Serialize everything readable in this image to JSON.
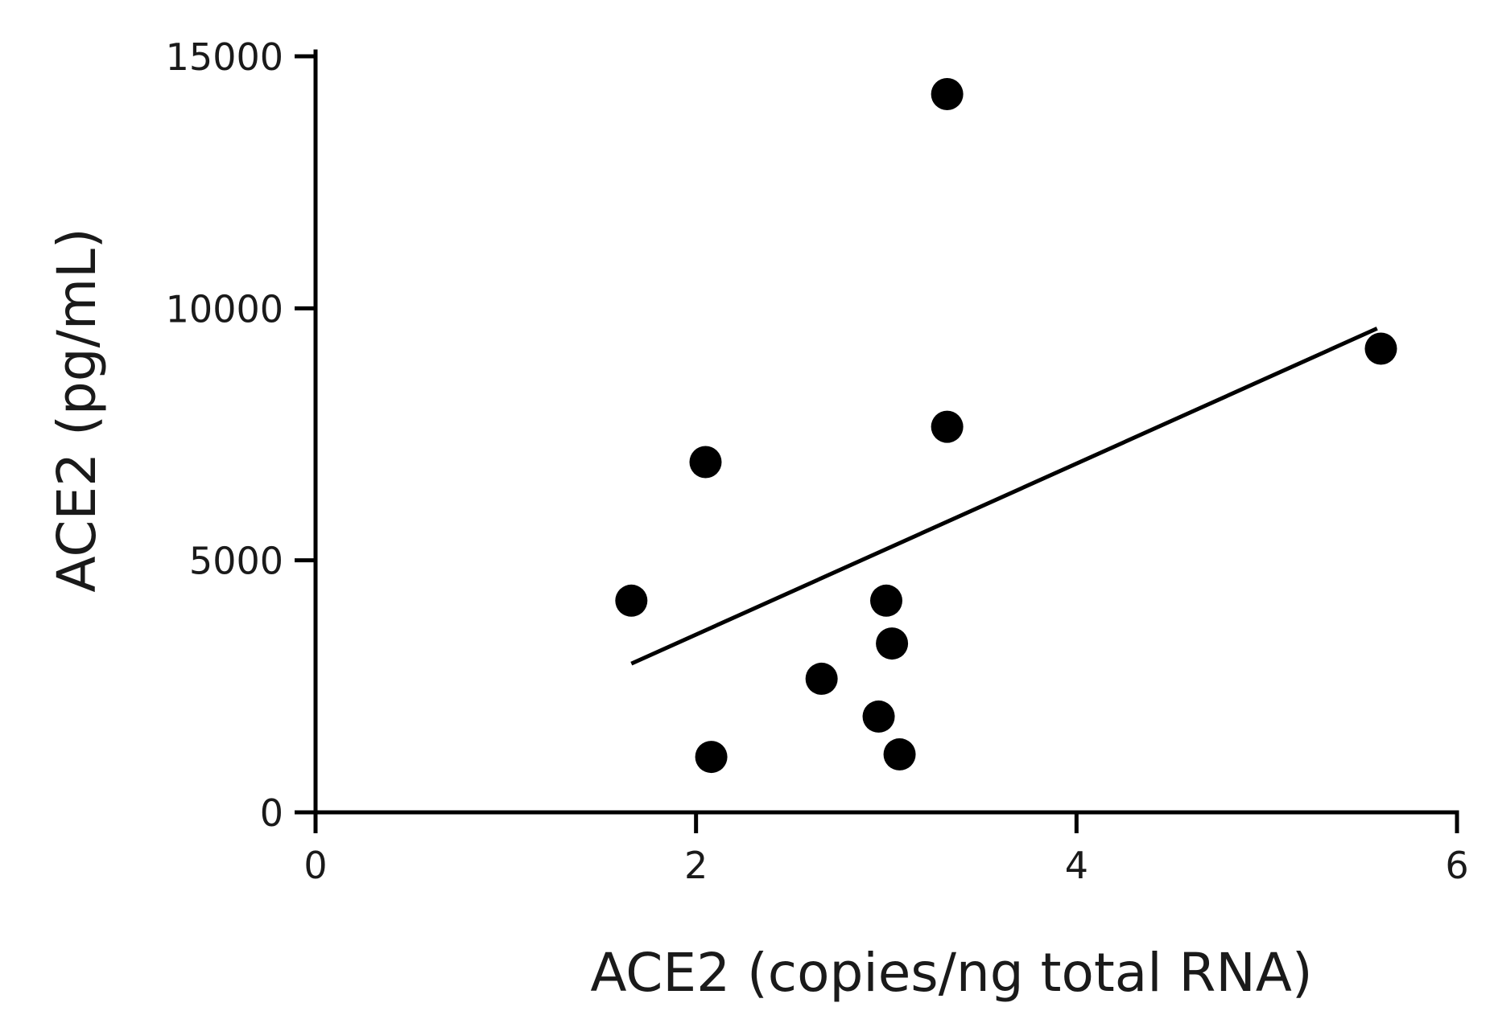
{
  "chart_data": {
    "type": "scatter",
    "title": "",
    "xlabel": "ACE2 (copies/ng total RNA)",
    "ylabel": "ACE2 (pg/mL)",
    "xlim": [
      0,
      6
    ],
    "ylim": [
      0,
      15000
    ],
    "x_ticks": [
      0,
      2,
      4,
      6
    ],
    "y_ticks": [
      0,
      5000,
      10000,
      15000
    ],
    "x_tick_labels": [
      "0",
      "2",
      "4",
      "6"
    ],
    "y_tick_labels": [
      "0",
      "5000",
      "10000",
      "15000"
    ],
    "grid": false,
    "legend": "none",
    "point_color": "#000000",
    "points": [
      {
        "x": 1.66,
        "y": 4200
      },
      {
        "x": 2.05,
        "y": 6950
      },
      {
        "x": 2.08,
        "y": 1100
      },
      {
        "x": 2.66,
        "y": 2650
      },
      {
        "x": 2.96,
        "y": 1900
      },
      {
        "x": 3.0,
        "y": 4200
      },
      {
        "x": 3.03,
        "y": 3350
      },
      {
        "x": 3.07,
        "y": 1150
      },
      {
        "x": 3.32,
        "y": 14250
      },
      {
        "x": 3.32,
        "y": 7650
      },
      {
        "x": 5.6,
        "y": 9200
      }
    ],
    "trendline": {
      "x": [
        1.66,
        5.58
      ],
      "y": [
        2950,
        9600
      ]
    }
  }
}
